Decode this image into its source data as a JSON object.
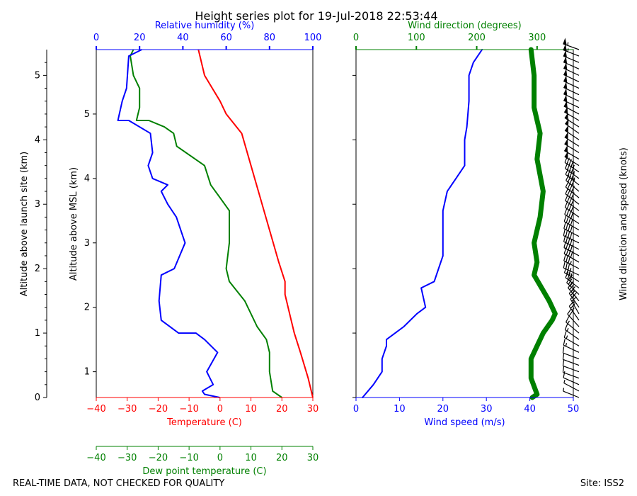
{
  "title": "Height series plot for 19-Jul-2018 22:53:44",
  "footer_left": "REAL-TIME DATA, NOT CHECKED FOR QUALITY",
  "footer_right": "Site: ISS2",
  "colors": {
    "temperature": "#ff0000",
    "dewpoint": "#008000",
    "rh": "#0000ff",
    "wspd": "#0000ff",
    "wdir": "#008000",
    "barbs": "#000000"
  },
  "chart_data": [
    {
      "type": "line",
      "panel": "thermo",
      "title": "Height series plot for 19-Jul-2018 22:53:44",
      "ylabel_left": "Altitude above launch site (km)",
      "ylabel_right": "Altitude above MSL (km)",
      "left_axis": {
        "ticks": [
          0,
          1,
          2,
          3,
          4,
          5
        ],
        "labels": [
          "0",
          "1",
          "2",
          "3",
          "4",
          "5"
        ],
        "range": [
          0,
          5.4
        ]
      },
      "msl_axis": {
        "ticks": [
          0.6,
          1.6,
          2.6,
          3.6,
          4.6,
          5.6
        ],
        "labels": [
          "1",
          "2",
          "3",
          "4",
          "5"
        ],
        "label_values": [
          1,
          2,
          3,
          4,
          5
        ],
        "range": [
          0.6,
          6.0
        ]
      },
      "x_axes": [
        {
          "name": "Temperature (C)",
          "color": "#ff0000",
          "ticks": [
            -40,
            -30,
            -20,
            -10,
            0,
            10,
            20,
            30
          ],
          "labels": [
            "−40",
            "−30",
            "−20",
            "−10",
            "0",
            "10",
            "20",
            "30"
          ],
          "range": [
            -40,
            30
          ]
        },
        {
          "name": "Relative humidity (%)",
          "color": "#0000ff",
          "ticks": [
            0,
            20,
            40,
            60,
            80,
            100
          ],
          "labels": [
            "0",
            "20",
            "40",
            "60",
            "80",
            "100"
          ],
          "range": [
            0,
            100
          ]
        },
        {
          "name": "Dew point temperature (C)",
          "color": "#008000",
          "ticks": [
            -40,
            -30,
            -20,
            -10,
            0,
            10,
            20,
            30
          ],
          "labels": [
            "−40",
            "−30",
            "−20",
            "−10",
            "0",
            "10",
            "20",
            "30"
          ],
          "range": [
            -40,
            30
          ]
        }
      ],
      "series": [
        {
          "name": "Temperature",
          "axis": "Temperature (C)",
          "color": "#ff0000",
          "points": [
            [
              30,
              0
            ],
            [
              28.5,
              0.3
            ],
            [
              26,
              0.7
            ],
            [
              24,
              1.0
            ],
            [
              22.5,
              1.3
            ],
            [
              21,
              1.6
            ],
            [
              21,
              1.8
            ],
            [
              19,
              2.1
            ],
            [
              16,
              2.6
            ],
            [
              13,
              3.1
            ],
            [
              10,
              3.6
            ],
            [
              7,
              4.1
            ],
            [
              2,
              4.4
            ],
            [
              0,
              4.6
            ],
            [
              -5,
              5.0
            ],
            [
              -7,
              5.4
            ]
          ]
        },
        {
          "name": "Dew point temperature",
          "axis": "Dew point temperature (C)",
          "color": "#008000",
          "points": [
            [
              20,
              0
            ],
            [
              17,
              0.1
            ],
            [
              16,
              0.4
            ],
            [
              16,
              0.7
            ],
            [
              15,
              0.9
            ],
            [
              12,
              1.1
            ],
            [
              8,
              1.5
            ],
            [
              3,
              1.8
            ],
            [
              2,
              2.0
            ],
            [
              3,
              2.4
            ],
            [
              3,
              2.9
            ],
            [
              0,
              3.1
            ],
            [
              -3,
              3.3
            ],
            [
              -5,
              3.6
            ],
            [
              -8,
              3.7
            ],
            [
              -14,
              3.9
            ],
            [
              -15,
              4.1
            ],
            [
              -18,
              4.2
            ],
            [
              -23,
              4.3
            ],
            [
              -27,
              4.3
            ],
            [
              -26,
              4.5
            ],
            [
              -26,
              4.8
            ],
            [
              -28,
              5.0
            ],
            [
              -29,
              5.3
            ],
            [
              -28,
              5.4
            ]
          ]
        },
        {
          "name": "Relative humidity",
          "axis": "Relative humidity (%)",
          "color": "#0000ff",
          "points": [
            [
              57,
              0
            ],
            [
              50,
              0.05
            ],
            [
              49,
              0.1
            ],
            [
              54,
              0.2
            ],
            [
              51,
              0.4
            ],
            [
              56,
              0.7
            ],
            [
              50,
              0.9
            ],
            [
              46,
              1.0
            ],
            [
              38,
              1.0
            ],
            [
              30,
              1.2
            ],
            [
              29,
              1.5
            ],
            [
              30,
              1.9
            ],
            [
              36,
              2.0
            ],
            [
              41,
              2.4
            ],
            [
              37,
              2.8
            ],
            [
              33,
              3.0
            ],
            [
              30,
              3.2
            ],
            [
              33,
              3.3
            ],
            [
              26,
              3.4
            ],
            [
              24,
              3.6
            ],
            [
              26,
              3.8
            ],
            [
              25,
              4.1
            ],
            [
              15,
              4.3
            ],
            [
              10,
              4.3
            ],
            [
              12,
              4.6
            ],
            [
              14,
              4.8
            ],
            [
              15,
              5.3
            ],
            [
              21,
              5.4
            ]
          ]
        }
      ]
    },
    {
      "type": "line",
      "panel": "wind",
      "x_axes": [
        {
          "name": "Wind speed (m/s)",
          "color": "#0000ff",
          "ticks": [
            0,
            10,
            20,
            30,
            40,
            50
          ],
          "labels": [
            "0",
            "10",
            "20",
            "30",
            "40",
            "50"
          ],
          "range": [
            0,
            50
          ]
        },
        {
          "name": "Wind direction (degrees)",
          "color": "#008000",
          "ticks": [
            0,
            100,
            200,
            300
          ],
          "labels": [
            "0",
            "100",
            "200",
            "300"
          ],
          "range": [
            0,
            360
          ]
        }
      ],
      "y_range": [
        0,
        5.4
      ],
      "right_label": "Wind direction and speed (knots)",
      "series": [
        {
          "name": "Wind speed",
          "axis": "Wind speed (m/s)",
          "color": "#0000ff",
          "points": [
            [
              1.5,
              0
            ],
            [
              4,
              0.2
            ],
            [
              6,
              0.4
            ],
            [
              6,
              0.6
            ],
            [
              7,
              0.8
            ],
            [
              7,
              0.9
            ],
            [
              9,
              1.0
            ],
            [
              11,
              1.1
            ],
            [
              14,
              1.3
            ],
            [
              16,
              1.4
            ],
            [
              15,
              1.7
            ],
            [
              18,
              1.8
            ],
            [
              20,
              2.2
            ],
            [
              20,
              2.5
            ],
            [
              20,
              2.9
            ],
            [
              21,
              3.2
            ],
            [
              23,
              3.4
            ],
            [
              25,
              3.6
            ],
            [
              25,
              4.0
            ],
            [
              25.5,
              4.2
            ],
            [
              26,
              4.6
            ],
            [
              26,
              5.0
            ],
            [
              27,
              5.2
            ],
            [
              29,
              5.4
            ]
          ]
        },
        {
          "name": "Wind direction",
          "axis": "Wind direction (degrees)",
          "color": "#008000",
          "points": [
            [
              292,
              0
            ],
            [
              300,
              0.05
            ],
            [
              290,
              0.3
            ],
            [
              290,
              0.6
            ],
            [
              300,
              0.8
            ],
            [
              310,
              1.0
            ],
            [
              325,
              1.2
            ],
            [
              330,
              1.3
            ],
            [
              320,
              1.5
            ],
            [
              295,
              1.9
            ],
            [
              300,
              2.1
            ],
            [
              295,
              2.4
            ],
            [
              305,
              2.8
            ],
            [
              310,
              3.2
            ],
            [
              300,
              3.7
            ],
            [
              305,
              4.1
            ],
            [
              295,
              4.5
            ],
            [
              295,
              5.0
            ],
            [
              290,
              5.4
            ]
          ]
        }
      ],
      "barbs": {
        "interval_km": 0.1,
        "range": [
          0,
          5.4
        ]
      }
    }
  ]
}
